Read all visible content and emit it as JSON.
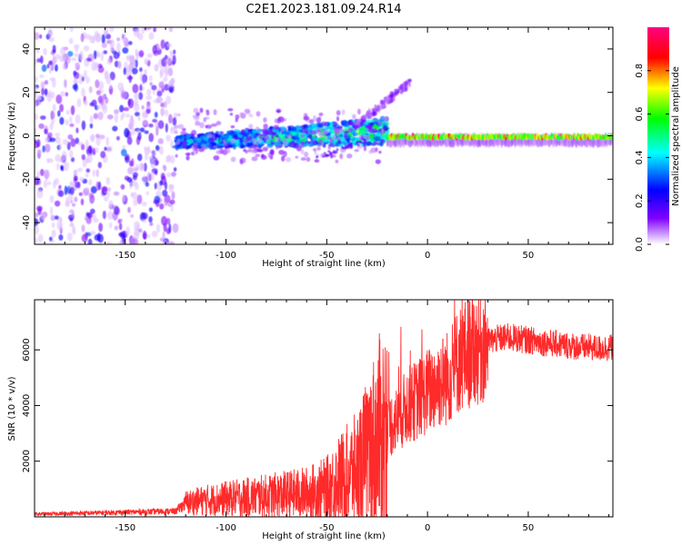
{
  "figure_title": "C2E1.2023.181.09.24.R14",
  "chart_data": [
    {
      "type": "heatmap",
      "xlabel": "Height of straight line (km)",
      "ylabel": "Frequency (Hz)",
      "xlim": [
        -195,
        92
      ],
      "ylim": [
        -50,
        50
      ],
      "x_ticks": [
        -150,
        -100,
        -50,
        0,
        50
      ],
      "x_tick_labels": [
        "-150",
        "-100",
        "-50",
        "0",
        "50"
      ],
      "y_ticks": [
        -40,
        -20,
        0,
        20,
        40
      ],
      "y_tick_labels": [
        "-40",
        "-20",
        "0",
        "20",
        "40"
      ],
      "colorbar": {
        "label": "Normalized spectral amplitude",
        "range": [
          0,
          1
        ],
        "ticks": [
          0.0,
          0.2,
          0.4,
          0.6,
          0.8
        ],
        "tick_labels": [
          "0.0",
          "0.2",
          "0.4",
          "0.6",
          "0.8"
        ],
        "colormap": [
          "#ffffff",
          "#8000ff",
          "#0000ff",
          "#00ffff",
          "#00ff00",
          "#ffff00",
          "#ff0000",
          "#ff0080"
        ]
      },
      "regions": [
        {
          "name": "scattered noise",
          "x_range": [
            -195,
            -125
          ],
          "freq_range": [
            -50,
            50
          ],
          "amplitude": [
            0.05,
            0.25
          ]
        },
        {
          "name": "signal band",
          "x_range": [
            -125,
            -20
          ],
          "freq_range": [
            -8,
            6
          ],
          "amplitude": [
            0.2,
            0.7
          ]
        },
        {
          "name": "rising tail",
          "x_range": [
            -35,
            -8
          ],
          "freq_range": [
            5,
            25
          ],
          "amplitude": [
            0.05,
            0.15
          ]
        },
        {
          "name": "steady carrier",
          "x_range": [
            -20,
            92
          ],
          "freq_range": [
            -2,
            1
          ],
          "amplitude": [
            0.3,
            0.9
          ]
        }
      ]
    },
    {
      "type": "line",
      "xlabel": "Height of straight line (km)",
      "ylabel": "SNR (10 * v/v)",
      "xlim": [
        -195,
        92
      ],
      "ylim": [
        0,
        7800
      ],
      "x_ticks": [
        -150,
        -100,
        -50,
        0,
        50
      ],
      "x_tick_labels": [
        "-150",
        "-100",
        "-50",
        "0",
        "50"
      ],
      "y_ticks": [
        2000,
        4000,
        6000
      ],
      "y_tick_labels": [
        "2000",
        "4000",
        "6000"
      ],
      "line_color": "#ff2a2a",
      "series": [
        {
          "name": "SNR",
          "x": [
            -195,
            -180,
            -160,
            -140,
            -125,
            -120,
            -110,
            -100,
            -90,
            -80,
            -70,
            -60,
            -50,
            -45,
            -40,
            -35,
            -30,
            -25,
            -20,
            -15,
            -10,
            -5,
            0,
            5,
            10,
            15,
            20,
            25,
            30,
            35,
            40,
            45,
            50,
            55,
            60,
            65,
            70,
            75,
            80,
            85,
            92
          ],
          "y": [
            100,
            120,
            150,
            180,
            200,
            500,
            600,
            650,
            700,
            750,
            800,
            850,
            1000,
            1300,
            1500,
            1700,
            2200,
            2800,
            3200,
            3500,
            4000,
            4200,
            4500,
            4800,
            5000,
            5600,
            5900,
            6100,
            6300,
            6400,
            6450,
            6400,
            6350,
            6300,
            6250,
            6200,
            6150,
            6100,
            6100,
            6050,
            6100
          ]
        }
      ]
    }
  ]
}
